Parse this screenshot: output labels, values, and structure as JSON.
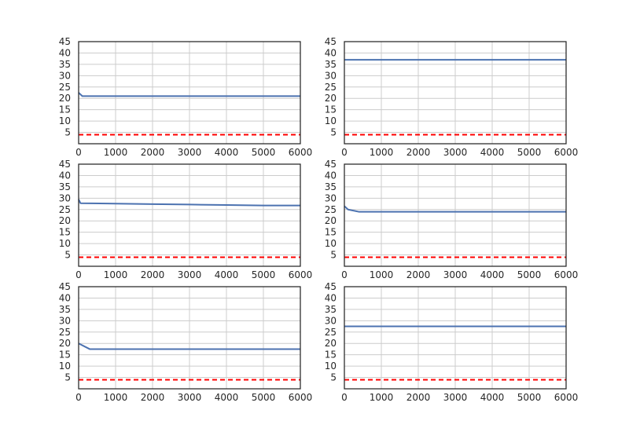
{
  "chart_data": [
    {
      "type": "line",
      "xlim": [
        0,
        6000
      ],
      "ylim": [
        0,
        45
      ],
      "xticks": [
        0,
        1000,
        2000,
        3000,
        4000,
        5000,
        6000
      ],
      "yticks": [
        5,
        10,
        15,
        20,
        25,
        30,
        35,
        40,
        45
      ],
      "grid": true,
      "series": [
        {
          "style": "solid",
          "color": "#4c72b0",
          "x": [
            0,
            100,
            6000
          ],
          "y": [
            22.5,
            21,
            21
          ]
        },
        {
          "style": "dashed",
          "color": "#ff0000",
          "x": [
            0,
            6000
          ],
          "y": [
            4,
            4
          ]
        }
      ]
    },
    {
      "type": "line",
      "xlim": [
        0,
        6000
      ],
      "ylim": [
        0,
        45
      ],
      "xticks": [
        0,
        1000,
        2000,
        3000,
        4000,
        5000,
        6000
      ],
      "yticks": [
        5,
        10,
        15,
        20,
        25,
        30,
        35,
        40,
        45
      ],
      "grid": true,
      "series": [
        {
          "style": "solid",
          "color": "#4c72b0",
          "x": [
            0,
            6000
          ],
          "y": [
            37,
            37
          ]
        },
        {
          "style": "dashed",
          "color": "#ff0000",
          "x": [
            0,
            6000
          ],
          "y": [
            4,
            4
          ]
        }
      ]
    },
    {
      "type": "line",
      "xlim": [
        0,
        6000
      ],
      "ylim": [
        0,
        45
      ],
      "xticks": [
        0,
        1000,
        2000,
        3000,
        4000,
        5000,
        6000
      ],
      "yticks": [
        5,
        10,
        15,
        20,
        25,
        30,
        35,
        40,
        45
      ],
      "grid": true,
      "series": [
        {
          "style": "solid",
          "color": "#4c72b0",
          "x": [
            0,
            50,
            1000,
            2000,
            3000,
            4000,
            5000,
            6000
          ],
          "y": [
            29.5,
            27.8,
            27.6,
            27.4,
            27.2,
            27.0,
            26.8,
            26.8
          ]
        },
        {
          "style": "dashed",
          "color": "#ff0000",
          "x": [
            0,
            6000
          ],
          "y": [
            4,
            4
          ]
        }
      ]
    },
    {
      "type": "line",
      "xlim": [
        0,
        6000
      ],
      "ylim": [
        0,
        45
      ],
      "xticks": [
        0,
        1000,
        2000,
        3000,
        4000,
        5000,
        6000
      ],
      "yticks": [
        5,
        10,
        15,
        20,
        25,
        30,
        35,
        40,
        45
      ],
      "grid": true,
      "series": [
        {
          "style": "solid",
          "color": "#4c72b0",
          "x": [
            0,
            100,
            400,
            6000
          ],
          "y": [
            26.5,
            25,
            24,
            24
          ]
        },
        {
          "style": "dashed",
          "color": "#ff0000",
          "x": [
            0,
            6000
          ],
          "y": [
            4,
            4
          ]
        }
      ]
    },
    {
      "type": "line",
      "xlim": [
        0,
        6000
      ],
      "ylim": [
        0,
        45
      ],
      "xticks": [
        0,
        1000,
        2000,
        3000,
        4000,
        5000,
        6000
      ],
      "yticks": [
        5,
        10,
        15,
        20,
        25,
        30,
        35,
        40,
        45
      ],
      "grid": true,
      "series": [
        {
          "style": "solid",
          "color": "#4c72b0",
          "x": [
            0,
            300,
            6000
          ],
          "y": [
            20,
            17.5,
            17.5
          ]
        },
        {
          "style": "dashed",
          "color": "#ff0000",
          "x": [
            0,
            6000
          ],
          "y": [
            4,
            4
          ]
        }
      ]
    },
    {
      "type": "line",
      "xlim": [
        0,
        6000
      ],
      "ylim": [
        0,
        45
      ],
      "xticks": [
        0,
        1000,
        2000,
        3000,
        4000,
        5000,
        6000
      ],
      "yticks": [
        5,
        10,
        15,
        20,
        25,
        30,
        35,
        40,
        45
      ],
      "grid": true,
      "series": [
        {
          "style": "solid",
          "color": "#4c72b0",
          "x": [
            0,
            6000
          ],
          "y": [
            27.5,
            27.5
          ]
        },
        {
          "style": "dashed",
          "color": "#ff0000",
          "x": [
            0,
            6000
          ],
          "y": [
            4,
            4
          ]
        }
      ]
    }
  ]
}
